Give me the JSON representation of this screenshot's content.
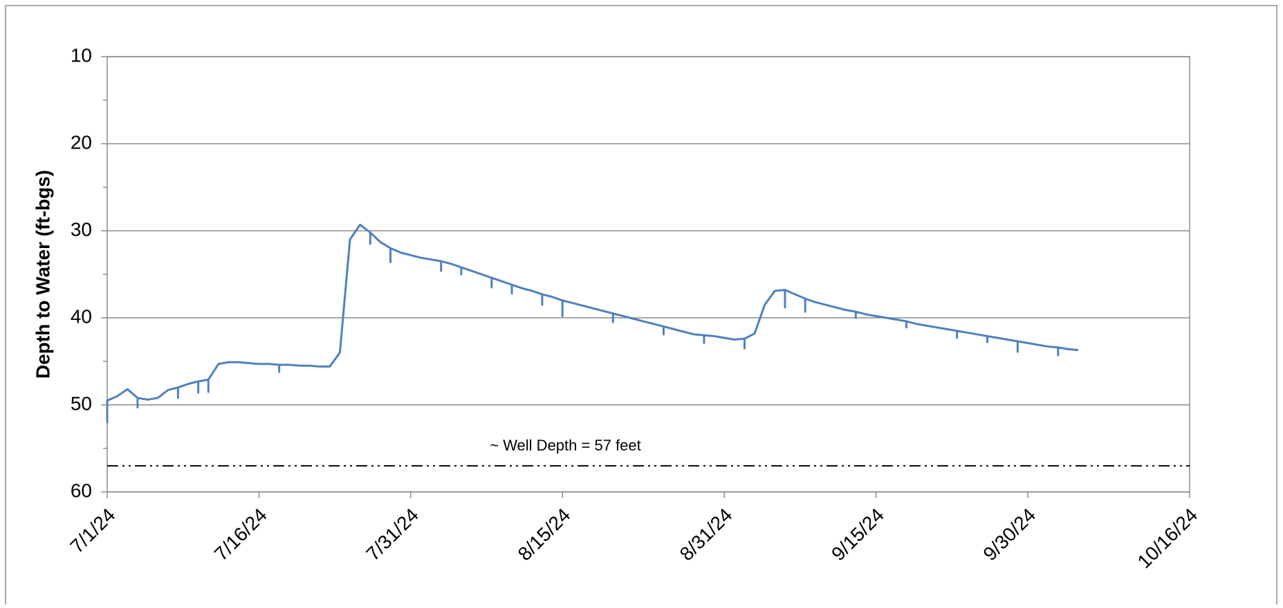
{
  "chart_data": {
    "type": "line",
    "y_axis_label": "Depth to Water (ft-bgs)",
    "y_reversed": true,
    "ylim": [
      10,
      60
    ],
    "yticks": [
      10,
      20,
      30,
      40,
      50,
      60
    ],
    "yminor_ticks": [
      15,
      25,
      35,
      45,
      55
    ],
    "grid": true,
    "xlim": [
      "2024-07-01",
      "2024-10-16"
    ],
    "xticks": [
      {
        "value": "2024-07-01",
        "label": "7/1/24"
      },
      {
        "value": "2024-07-16",
        "label": "7/16/24"
      },
      {
        "value": "2024-07-31",
        "label": "7/31/24"
      },
      {
        "value": "2024-08-15",
        "label": "8/15/24"
      },
      {
        "value": "2024-08-31",
        "label": "8/31/24"
      },
      {
        "value": "2024-09-15",
        "label": "9/15/24"
      },
      {
        "value": "2024-09-30",
        "label": "9/30/24"
      },
      {
        "value": "2024-10-16",
        "label": "10/16/24"
      }
    ],
    "reference_lines": [
      {
        "value": 57,
        "label": "~ Well Depth = 57 feet",
        "color": "#000000"
      }
    ],
    "x": [
      "2024-07-01",
      "2024-07-01",
      "2024-07-01",
      "2024-07-02",
      "2024-07-03",
      "2024-07-04",
      "2024-07-04",
      "2024-07-04",
      "2024-07-05",
      "2024-07-06",
      "2024-07-07",
      "2024-07-08",
      "2024-07-08",
      "2024-07-08",
      "2024-07-09",
      "2024-07-10",
      "2024-07-10",
      "2024-07-10",
      "2024-07-11",
      "2024-07-11",
      "2024-07-11",
      "2024-07-12",
      "2024-07-13",
      "2024-07-14",
      "2024-07-15",
      "2024-07-16",
      "2024-07-17",
      "2024-07-18",
      "2024-07-18",
      "2024-07-18",
      "2024-07-19",
      "2024-07-20",
      "2024-07-21",
      "2024-07-22",
      "2024-07-23",
      "2024-07-24",
      "2024-07-25",
      "2024-07-26",
      "2024-07-27",
      "2024-07-27",
      "2024-07-27",
      "2024-07-28",
      "2024-07-29",
      "2024-07-29",
      "2024-07-29",
      "2024-07-30",
      "2024-07-31",
      "2024-08-01",
      "2024-08-02",
      "2024-08-03",
      "2024-08-03",
      "2024-08-03",
      "2024-08-04",
      "2024-08-05",
      "2024-08-05",
      "2024-08-05",
      "2024-08-06",
      "2024-08-07",
      "2024-08-08",
      "2024-08-08",
      "2024-08-08",
      "2024-08-09",
      "2024-08-10",
      "2024-08-10",
      "2024-08-10",
      "2024-08-11",
      "2024-08-12",
      "2024-08-13",
      "2024-08-13",
      "2024-08-13",
      "2024-08-14",
      "2024-08-15",
      "2024-08-15",
      "2024-08-15",
      "2024-08-16",
      "2024-08-17",
      "2024-08-18",
      "2024-08-19",
      "2024-08-20",
      "2024-08-20",
      "2024-08-20",
      "2024-08-21",
      "2024-08-22",
      "2024-08-23",
      "2024-08-24",
      "2024-08-25",
      "2024-08-25",
      "2024-08-25",
      "2024-08-26",
      "2024-08-27",
      "2024-08-28",
      "2024-08-29",
      "2024-08-29",
      "2024-08-29",
      "2024-08-30",
      "2024-08-31",
      "2024-09-01",
      "2024-09-02",
      "2024-09-02",
      "2024-09-02",
      "2024-09-03",
      "2024-09-04",
      "2024-09-05",
      "2024-09-06",
      "2024-09-06",
      "2024-09-06",
      "2024-09-07",
      "2024-09-08",
      "2024-09-08",
      "2024-09-08",
      "2024-09-09",
      "2024-09-10",
      "2024-09-11",
      "2024-09-12",
      "2024-09-13",
      "2024-09-13",
      "2024-09-13",
      "2024-09-14",
      "2024-09-15",
      "2024-09-16",
      "2024-09-17",
      "2024-09-18",
      "2024-09-18",
      "2024-09-18",
      "2024-09-19",
      "2024-09-20",
      "2024-09-21",
      "2024-09-22",
      "2024-09-23",
      "2024-09-23",
      "2024-09-23",
      "2024-09-24",
      "2024-09-25",
      "2024-09-26",
      "2024-09-26",
      "2024-09-26",
      "2024-09-27",
      "2024-09-28",
      "2024-09-29",
      "2024-09-29",
      "2024-09-29",
      "2024-09-30",
      "2024-10-01",
      "2024-10-02",
      "2024-10-03",
      "2024-10-03",
      "2024-10-03",
      "2024-10-04",
      "2024-10-05"
    ],
    "series": [
      {
        "name": "Depth to Water",
        "color": "#4f81bd",
        "values": [
          49.5,
          52,
          49.5,
          49,
          48.2,
          49.2,
          50.3,
          49.2,
          49.4,
          49.2,
          48.3,
          48,
          49.2,
          48,
          47.6,
          47.3,
          48.6,
          47.3,
          47.1,
          48.5,
          47.1,
          45.3,
          45.1,
          45.1,
          45.2,
          45.3,
          45.3,
          45.4,
          46.2,
          45.4,
          45.4,
          45.5,
          45.5,
          45.6,
          45.6,
          44,
          31,
          29.3,
          30.2,
          31.5,
          30.2,
          31.3,
          32,
          33.6,
          32,
          32.5,
          32.8,
          33.1,
          33.3,
          33.5,
          34.6,
          33.5,
          33.8,
          34.2,
          35,
          34.2,
          34.6,
          35,
          35.4,
          36.5,
          35.4,
          35.8,
          36.2,
          37.2,
          36.2,
          36.6,
          36.9,
          37.3,
          38.5,
          37.3,
          37.6,
          38,
          39.8,
          38,
          38.3,
          38.6,
          38.9,
          39.2,
          39.5,
          40.5,
          39.5,
          39.8,
          40.1,
          40.4,
          40.7,
          41,
          41.9,
          41,
          41.3,
          41.6,
          41.9,
          42,
          42.9,
          42,
          42.1,
          42.3,
          42.5,
          42.4,
          43.5,
          42.4,
          41.8,
          38.5,
          36.9,
          36.8,
          38.8,
          36.8,
          37.3,
          37.8,
          39.3,
          37.8,
          38.2,
          38.5,
          38.8,
          39.1,
          39.3,
          40,
          39.3,
          39.6,
          39.8,
          40,
          40.2,
          40.4,
          41.1,
          40.4,
          40.7,
          40.9,
          41.1,
          41.3,
          41.5,
          42.3,
          41.5,
          41.7,
          41.9,
          42.1,
          42.8,
          42.1,
          42.3,
          42.5,
          42.7,
          43.9,
          42.7,
          42.9,
          43.1,
          43.3,
          43.4,
          44.3,
          43.4,
          43.6,
          43.7
        ]
      }
    ]
  }
}
